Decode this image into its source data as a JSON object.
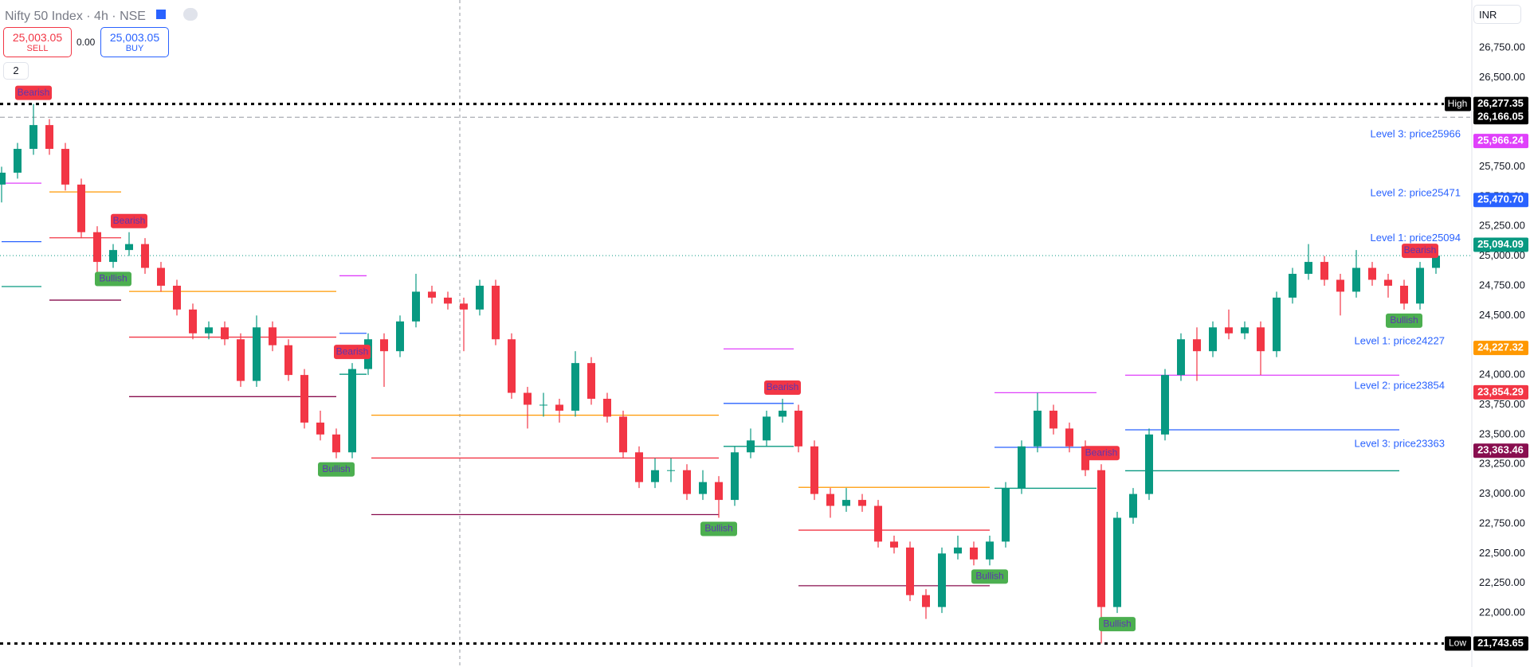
{
  "header": {
    "title": "Nifty 50 Index · 4h · NSE",
    "sell_price": "25,003.05",
    "sell_label": "SELL",
    "spread": "0.00",
    "buy_price": "25,003.05",
    "buy_label": "BUY",
    "indicator_count": "2",
    "currency": "INR"
  },
  "chart_data": {
    "type": "candlestick",
    "up_color": "#089981",
    "down_color": "#f23645",
    "ylim": [
      21546,
      27151
    ],
    "yticks": [
      {
        "value": 26750,
        "label": "26,750.00"
      },
      {
        "value": 26500,
        "label": "26,500.00"
      },
      {
        "value": 25750,
        "label": "25,750.00"
      },
      {
        "value": 25500,
        "label": "25,500.00"
      },
      {
        "value": 25250,
        "label": "25,250.00"
      },
      {
        "value": 25000,
        "label": "25,000.00"
      },
      {
        "value": 24750,
        "label": "24,750.00"
      },
      {
        "value": 24500,
        "label": "24,500.00"
      },
      {
        "value": 24000,
        "label": "24,000.00"
      },
      {
        "value": 23750,
        "label": "23,750.00"
      },
      {
        "value": 23500,
        "label": "23,500.00"
      },
      {
        "value": 23250,
        "label": "23,250.00"
      },
      {
        "value": 23000,
        "label": "23,000.00"
      },
      {
        "value": 22750,
        "label": "22,750.00"
      },
      {
        "value": 22500,
        "label": "22,500.00"
      },
      {
        "value": 22250,
        "label": "22,250.00"
      },
      {
        "value": 22000,
        "label": "22,000.00"
      }
    ],
    "open": [
      25600,
      25700,
      25900,
      26100,
      25900,
      25600,
      25200,
      24950,
      25050,
      25100,
      24900,
      24750,
      24550,
      24350,
      24400,
      24300,
      23950,
      24400,
      24250,
      24000,
      23600,
      23500,
      23350,
      24050,
      24300,
      24200,
      24450,
      24700,
      24650,
      24600,
      24550,
      24750,
      24300,
      23850,
      23750,
      23750,
      23700,
      24100,
      23800,
      23650,
      23350,
      23100,
      23200,
      23200,
      23000,
      23100,
      22950,
      23350,
      23450,
      23650,
      23700,
      23400,
      23000,
      22900,
      22950,
      22900,
      22600,
      22550,
      22150,
      22050,
      22500,
      22550,
      22450,
      22600,
      23050,
      23400,
      23700,
      23550,
      23400,
      23200,
      22050,
      22800,
      23000,
      23500,
      24000,
      24300,
      24200,
      24400,
      24350,
      24400,
      24200,
      24650,
      24850,
      24950,
      24800,
      24700,
      24900,
      24800,
      24750,
      24600,
      24900
    ],
    "high": [
      25750,
      25950,
      26277.35,
      26150,
      25950,
      25650,
      25250,
      25100,
      25200,
      25150,
      24950,
      24800,
      24600,
      24450,
      24450,
      24350,
      24500,
      24450,
      24300,
      24050,
      23700,
      23550,
      24100,
      24350,
      24350,
      24500,
      24850,
      24750,
      24700,
      24650,
      24800,
      24800,
      24350,
      23900,
      23850,
      23800,
      24200,
      24150,
      23850,
      23700,
      23400,
      23300,
      23300,
      23250,
      23200,
      23150,
      23400,
      23550,
      23700,
      23800,
      23750,
      23450,
      23050,
      23050,
      23000,
      22950,
      22650,
      22600,
      22200,
      22550,
      22650,
      22600,
      22650,
      23100,
      23450,
      23850,
      23750,
      23600,
      23450,
      23250,
      22850,
      23050,
      23550,
      24050,
      24350,
      24400,
      24450,
      24550,
      24450,
      24450,
      24700,
      24900,
      25100,
      25000,
      24850,
      25050,
      24950,
      24850,
      24800,
      24950,
      25050
    ],
    "low": [
      25450,
      25650,
      25850,
      25850,
      25550,
      25150,
      24850,
      24900,
      25000,
      24850,
      24700,
      24500,
      24300,
      24300,
      24250,
      23900,
      23900,
      24200,
      23950,
      23550,
      23450,
      23300,
      23300,
      24000,
      23900,
      24150,
      24400,
      24600,
      24550,
      24200,
      24500,
      24250,
      23800,
      23550,
      23650,
      23600,
      23650,
      23750,
      23600,
      23300,
      23050,
      23050,
      23100,
      22950,
      22950,
      22800,
      22900,
      23300,
      23400,
      23600,
      23350,
      22950,
      22800,
      22850,
      22850,
      22550,
      22500,
      22100,
      21950,
      22000,
      22450,
      22400,
      22400,
      22550,
      23000,
      23350,
      23500,
      23350,
      23150,
      21743.65,
      22000,
      22750,
      22950,
      23450,
      23950,
      23950,
      24150,
      24300,
      24300,
      24000,
      24150,
      24600,
      24800,
      24750,
      24500,
      24650,
      24750,
      24650,
      24550,
      24550,
      24850
    ],
    "close": [
      25700,
      25900,
      26100,
      25900,
      25600,
      25200,
      24950,
      25050,
      25100,
      24900,
      24750,
      24550,
      24350,
      24400,
      24300,
      23950,
      24400,
      24250,
      24000,
      23600,
      23500,
      23350,
      24050,
      24300,
      24200,
      24450,
      24700,
      24650,
      24600,
      24550,
      24750,
      24300,
      23850,
      23750,
      23750,
      23700,
      24100,
      23800,
      23650,
      23350,
      23100,
      23200,
      23200,
      23000,
      23100,
      22950,
      23350,
      23450,
      23650,
      23700,
      23400,
      23000,
      22900,
      22950,
      22900,
      22600,
      22550,
      22150,
      22050,
      22500,
      22550,
      22450,
      22600,
      23050,
      23400,
      23700,
      23550,
      23400,
      23200,
      22050,
      22800,
      23000,
      23500,
      24000,
      24300,
      24200,
      24400,
      24350,
      24400,
      24200,
      24650,
      24850,
      24950,
      24800,
      24700,
      24900,
      24800,
      24750,
      24600,
      24900,
      25003.05
    ],
    "segments": [
      {
        "value": 25612,
        "start": 0,
        "end": 2.5,
        "color": "#e040fb"
      },
      {
        "value": 25120,
        "start": 0,
        "end": 2.5,
        "color": "#2962ff"
      },
      {
        "value": 24743,
        "start": 0,
        "end": 2.5,
        "color": "#089981"
      },
      {
        "value": 25538,
        "start": 3,
        "end": 7.5,
        "color": "#ff9800"
      },
      {
        "value": 25153,
        "start": 3,
        "end": 7.5,
        "color": "#f23645"
      },
      {
        "value": 24629,
        "start": 3,
        "end": 7.5,
        "color": "#880e4f"
      },
      {
        "value": 24702,
        "start": 8,
        "end": 21,
        "color": "#ff9800"
      },
      {
        "value": 24318,
        "start": 8,
        "end": 21,
        "color": "#f23645"
      },
      {
        "value": 23818,
        "start": 8,
        "end": 21,
        "color": "#880e4f"
      },
      {
        "value": 24834,
        "start": 21.2,
        "end": 22.9,
        "color": "#e040fb"
      },
      {
        "value": 24350,
        "start": 21.2,
        "end": 22.9,
        "color": "#2962ff"
      },
      {
        "value": 24006,
        "start": 21.2,
        "end": 22.9,
        "color": "#089981"
      },
      {
        "value": 23662,
        "start": 23.2,
        "end": 45,
        "color": "#ff9800"
      },
      {
        "value": 23302,
        "start": 23.2,
        "end": 45,
        "color": "#f23645"
      },
      {
        "value": 22827,
        "start": 23.2,
        "end": 45,
        "color": "#880e4f"
      },
      {
        "value": 24219,
        "start": 45.3,
        "end": 49.7,
        "color": "#e040fb"
      },
      {
        "value": 23761,
        "start": 45.3,
        "end": 49.7,
        "color": "#2962ff"
      },
      {
        "value": 23400,
        "start": 45.3,
        "end": 49.7,
        "color": "#089981"
      },
      {
        "value": 23056,
        "start": 50,
        "end": 62,
        "color": "#ff9800"
      },
      {
        "value": 22696,
        "start": 50,
        "end": 62,
        "color": "#f23645"
      },
      {
        "value": 22229,
        "start": 50,
        "end": 62,
        "color": "#880e4f"
      },
      {
        "value": 23851,
        "start": 62.3,
        "end": 68.7,
        "color": "#e040fb"
      },
      {
        "value": 23392,
        "start": 62.3,
        "end": 68.7,
        "color": "#2962ff"
      },
      {
        "value": 23048,
        "start": 62.3,
        "end": 68.7,
        "color": "#089981"
      },
      {
        "value": 23998,
        "start": 70.5,
        "end": 87.7,
        "color": "#e040fb"
      },
      {
        "value": 23539,
        "start": 70.5,
        "end": 87.7,
        "color": "#2962ff"
      },
      {
        "value": 23195,
        "start": 70.5,
        "end": 87.7,
        "color": "#089981"
      }
    ],
    "signals": [
      {
        "text": "Bearish",
        "index": 2
      },
      {
        "text": "Bearish",
        "index": 8
      },
      {
        "text": "Bearish",
        "index": 22
      },
      {
        "text": "Bearish",
        "index": 49
      },
      {
        "text": "Bearish",
        "index": 69
      },
      {
        "text": "Bearish",
        "index": 89
      },
      {
        "text": "Bullish",
        "index": 7
      },
      {
        "text": "Bullish",
        "index": 21
      },
      {
        "text": "Bullish",
        "index": 45
      },
      {
        "text": "Bullish",
        "index": 62
      },
      {
        "text": "Bullish",
        "index": 70
      },
      {
        "text": "Bullish",
        "index": 88
      }
    ],
    "level_labels": [
      {
        "text": "Level 3: price25966",
        "value": 25966.24
      },
      {
        "text": "Level 2: price25471",
        "value": 25470.7
      },
      {
        "text": "Level 1: price25094",
        "value": 25094.09
      },
      {
        "text": "Level 1: price24227",
        "value": 24227.32
      },
      {
        "text": "Level 2: price23854",
        "value": 23854.29
      },
      {
        "text": "Level 3: price23363",
        "value": 23363.46
      }
    ],
    "price_tags": [
      {
        "value": 26277.35,
        "label": "26,277.35",
        "color": "#000000",
        "tag": "High",
        "line": "dotted"
      },
      {
        "value": 26166.05,
        "label": "26,166.05",
        "color": "#000000",
        "line": "dashed"
      },
      {
        "value": 25966.24,
        "label": "25,966.24",
        "color": "#e040fb"
      },
      {
        "value": 25470.7,
        "label": "25,470.70",
        "color": "#2962ff"
      },
      {
        "value": 25094.09,
        "label": "25,094.09",
        "color": "#089981"
      },
      {
        "value": 24227.32,
        "label": "24,227.32",
        "color": "#ff9800"
      },
      {
        "value": 23854.29,
        "label": "23,854.29",
        "color": "#f23645"
      },
      {
        "value": 23363.46,
        "label": "23,363.46",
        "color": "#880e4f"
      },
      {
        "value": 21743.65,
        "label": "21,743.65",
        "color": "#000000",
        "tag": "Low",
        "line": "dotted"
      }
    ]
  }
}
